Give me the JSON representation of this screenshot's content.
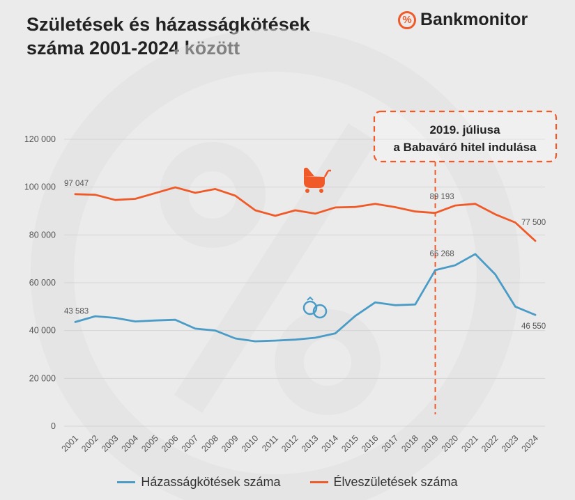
{
  "header": {
    "title_line1": "Születések és házasságkötések",
    "title_line2": "száma 2001-2024 között"
  },
  "brand": {
    "logo_glyph": "%",
    "name": "Bankmonitor",
    "accent": "#f05a28"
  },
  "annotation": {
    "line1": "2019. júliusa",
    "line2": "a Babaváró hitel indulása",
    "year": "2019",
    "color": "#f05a28"
  },
  "icons": {
    "births": "stroller-icon",
    "marriages": "wedding-rings-icon"
  },
  "chart_data": {
    "type": "line",
    "title": "Születések és házasságkötések száma 2001-2024 között",
    "categories": [
      "2001",
      "2002",
      "2003",
      "2004",
      "2005",
      "2006",
      "2007",
      "2008",
      "2009",
      "2010",
      "2011",
      "2012",
      "2013",
      "2014",
      "2015",
      "2016",
      "2017",
      "2018",
      "2019",
      "2020",
      "2021",
      "2022",
      "2023",
      "2024"
    ],
    "ylim": [
      0,
      120000
    ],
    "yticks": [
      0,
      20000,
      40000,
      60000,
      80000,
      100000,
      120000
    ],
    "ytick_labels": [
      "0",
      "20 000",
      "40 000",
      "60 000",
      "80 000",
      "100 000",
      "120 000"
    ],
    "grid": true,
    "legend_position": "bottom",
    "series": [
      {
        "name": "Házasságkötések száma",
        "color": "#4a9cc7",
        "values": [
          43583,
          46000,
          45300,
          43800,
          44200,
          44500,
          40800,
          40000,
          36700,
          35500,
          35800,
          36200,
          37000,
          38800,
          46100,
          51800,
          50600,
          50900,
          65268,
          67300,
          72000,
          63500,
          50000,
          46550
        ],
        "labels": [
          {
            "index": 0,
            "text": "43 583"
          },
          {
            "index": 18,
            "text": "65 268"
          },
          {
            "index": 23,
            "text": "46 550"
          }
        ]
      },
      {
        "name": "Élveszületések száma",
        "color": "#f05a28",
        "values": [
          97047,
          96800,
          94600,
          95100,
          97500,
          99900,
          97600,
          99200,
          96400,
          90300,
          88000,
          90300,
          88900,
          91500,
          91700,
          93000,
          91600,
          89800,
          89193,
          92300,
          93000,
          88600,
          85200,
          77500
        ],
        "labels": [
          {
            "index": 0,
            "text": "97 047"
          },
          {
            "index": 18,
            "text": "89 193"
          },
          {
            "index": 23,
            "text": "77 500"
          }
        ]
      }
    ]
  }
}
